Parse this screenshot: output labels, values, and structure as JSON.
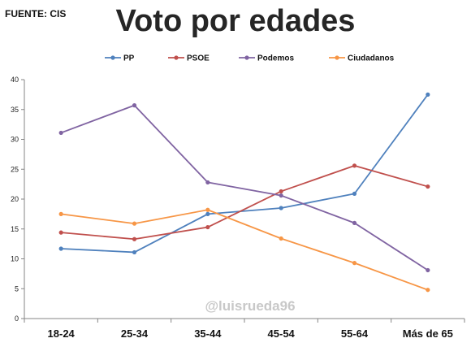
{
  "source": "FUENTE: CIS",
  "watermark": "@luisrueda96",
  "chart_data": {
    "type": "line",
    "title": "Voto por edades",
    "xlabel": "",
    "ylabel": "",
    "categories": [
      "18-24",
      "25-34",
      "35-44",
      "45-54",
      "55-64",
      "Más de 65"
    ],
    "ylim": [
      0,
      40
    ],
    "yticks": [
      0,
      5,
      10,
      15,
      20,
      25,
      30,
      35,
      40
    ],
    "grid": false,
    "legend_position": "top",
    "series": [
      {
        "name": "PP",
        "color": "#4f81bd",
        "values": [
          11.7,
          11.1,
          17.5,
          18.5,
          20.9,
          37.5
        ]
      },
      {
        "name": "PSOE",
        "color": "#c0504d",
        "values": [
          14.4,
          13.3,
          15.3,
          21.3,
          25.6,
          22.1
        ]
      },
      {
        "name": "Podemos",
        "color": "#8064a2",
        "values": [
          31.1,
          35.7,
          22.8,
          20.6,
          16.0,
          8.1
        ]
      },
      {
        "name": "Ciudadanos",
        "color": "#f79646",
        "values": [
          17.5,
          15.9,
          18.2,
          13.4,
          9.3,
          4.8
        ]
      }
    ]
  }
}
